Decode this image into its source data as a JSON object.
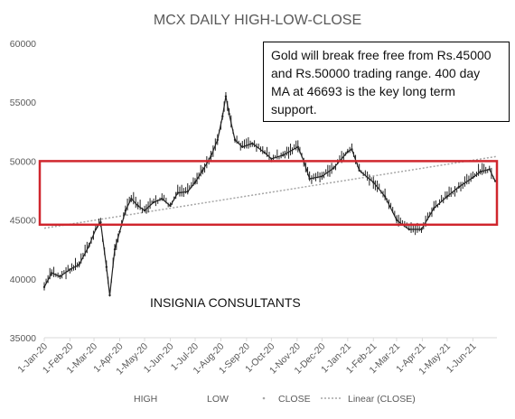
{
  "chart_data": {
    "type": "line",
    "title": "MCX DAILY HIGH-LOW-CLOSE",
    "ylim": [
      35000,
      60000
    ],
    "yticks": [
      "35000",
      "40000",
      "45000",
      "50000",
      "55000",
      "60000"
    ],
    "xlabels": [
      "1-Jan-20",
      "1-Feb-20",
      "1-Mar-20",
      "1-Apr-20",
      "1-May-20",
      "1-Jun-20",
      "1-Jul-20",
      "1-Aug-20",
      "1-Sep-20",
      "1-Oct-20",
      "1-Nov-20",
      "1-Dec-20",
      "1-Jan-21",
      "1-Feb-21",
      "1-Mar-21",
      "1-Apr-21",
      "1-May-21",
      "1-Jun-21"
    ],
    "xdomain": [
      "2020-01-01",
      "2021-06-30"
    ],
    "grid": false,
    "legend": {
      "position": "bottom",
      "entries": [
        {
          "label": "HIGH",
          "marker": "none"
        },
        {
          "label": "LOW",
          "marker": "none"
        },
        {
          "label": "CLOSE",
          "marker": "dot"
        },
        {
          "label": "Linear (CLOSE)",
          "marker": "dotted-line"
        }
      ]
    },
    "series": [
      {
        "name": "CLOSE",
        "x": [
          "2020-01-01",
          "2020-01-10",
          "2020-01-20",
          "2020-02-01",
          "2020-02-12",
          "2020-02-24",
          "2020-03-03",
          "2020-03-09",
          "2020-03-16",
          "2020-03-20",
          "2020-03-26",
          "2020-04-01",
          "2020-04-08",
          "2020-04-15",
          "2020-04-23",
          "2020-05-01",
          "2020-05-12",
          "2020-05-22",
          "2020-06-01",
          "2020-06-10",
          "2020-06-22",
          "2020-07-01",
          "2020-07-10",
          "2020-07-20",
          "2020-07-28",
          "2020-08-03",
          "2020-08-07",
          "2020-08-11",
          "2020-08-18",
          "2020-08-27",
          "2020-09-08",
          "2020-09-23",
          "2020-10-01",
          "2020-10-15",
          "2020-11-02",
          "2020-11-09",
          "2020-11-16",
          "2020-12-01",
          "2020-12-15",
          "2021-01-01",
          "2021-01-06",
          "2021-01-15",
          "2021-02-01",
          "2021-02-15",
          "2021-03-01",
          "2021-03-08",
          "2021-03-16",
          "2021-03-31",
          "2021-04-15",
          "2021-05-01",
          "2021-05-15",
          "2021-06-01",
          "2021-06-10",
          "2021-06-21",
          "2021-06-28"
        ],
        "values": [
          39300,
          40500,
          40200,
          40800,
          41200,
          42800,
          44200,
          44800,
          41000,
          38600,
          42500,
          44000,
          45800,
          46800,
          46200,
          45800,
          46500,
          46800,
          46200,
          47300,
          47400,
          48200,
          49200,
          50400,
          51800,
          53800,
          55500,
          54000,
          51800,
          51200,
          51500,
          50700,
          50200,
          50500,
          51200,
          50000,
          48500,
          48700,
          49400,
          50800,
          51000,
          49200,
          48200,
          47000,
          45000,
          44600,
          44200,
          44200,
          46000,
          47000,
          47800,
          48600,
          49100,
          49300,
          48300
        ]
      }
    ],
    "trendline": {
      "name": "Linear (CLOSE)",
      "start": 44300,
      "end": 50400
    },
    "annotations": [
      {
        "kind": "text-box",
        "text": "Gold will break free free from Rs.45000 and Rs.50000 trading range. 400 day MA at 46693 is the key long term support."
      },
      {
        "kind": "highlight-range",
        "from": 44600,
        "to": 50000,
        "color": "#d0262d"
      }
    ],
    "watermark": "INSIGNIA CONSULTANTS"
  },
  "colors": {
    "price": "#222222",
    "trend": "#a6a6a6",
    "axis_text": "#595959",
    "axis_line": "#d9d9d9",
    "range_box": "#d0262d"
  }
}
